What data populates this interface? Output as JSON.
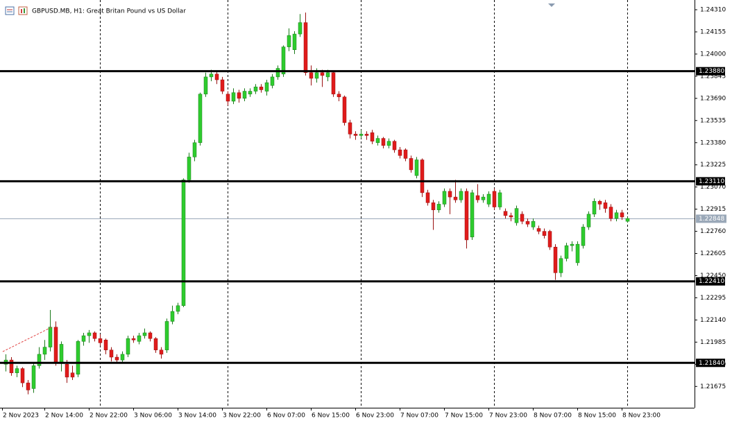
{
  "chart_data": {
    "type": "candlestick",
    "title": "GBPUSD.MB, H1:  Great Britan Pound vs US Dollar",
    "up_color": "#2ecc2e",
    "down_color": "#e01b1b",
    "ylim": [
      1.21526,
      1.24378
    ],
    "yticks": [
      {
        "value": 1.2431,
        "label": "1.24310"
      },
      {
        "value": 1.24155,
        "label": "1.24155"
      },
      {
        "value": 1.24,
        "label": "1.24000"
      },
      {
        "value": 1.23845,
        "label": "1.23845"
      },
      {
        "value": 1.2369,
        "label": "1.23690"
      },
      {
        "value": 1.23535,
        "label": "1.23535"
      },
      {
        "value": 1.2338,
        "label": "1.23380"
      },
      {
        "value": 1.23225,
        "label": "1.23225"
      },
      {
        "value": 1.2307,
        "label": "1.23070"
      },
      {
        "value": 1.22915,
        "label": "1.22915"
      },
      {
        "value": 1.2276,
        "label": "1.22760"
      },
      {
        "value": 1.22605,
        "label": "1.22605"
      },
      {
        "value": 1.2245,
        "label": "1.22450"
      },
      {
        "value": 1.22295,
        "label": "1.22295"
      },
      {
        "value": 1.2214,
        "label": "1.22140"
      },
      {
        "value": 1.21985,
        "label": "1.21985"
      },
      {
        "value": 1.2183,
        "label": "1.21830"
      },
      {
        "value": 1.21675,
        "label": "1.21675"
      }
    ],
    "levels": [
      {
        "value": 1.2388,
        "label": "1.23880"
      },
      {
        "value": 1.2311,
        "label": "1.23110"
      },
      {
        "value": 1.2241,
        "label": "1.22410"
      },
      {
        "value": 1.2184,
        "label": "1.21840"
      }
    ],
    "last_price": {
      "value": 1.22848,
      "label": "1.22848"
    },
    "categories": [
      "2 Nov 2023",
      null,
      null,
      null,
      null,
      null,
      null,
      "2 Nov 14:00",
      null,
      null,
      null,
      null,
      null,
      null,
      null,
      "2 Nov 22:00",
      null,
      null,
      null,
      null,
      null,
      null,
      null,
      "3 Nov 06:00",
      null,
      null,
      null,
      null,
      null,
      null,
      null,
      "3 Nov 14:00",
      null,
      null,
      null,
      null,
      null,
      null,
      null,
      "3 Nov 22:00",
      null,
      null,
      null,
      null,
      null,
      null,
      null,
      "6 Nov 07:00",
      null,
      null,
      null,
      null,
      null,
      null,
      null,
      "6 Nov 15:00",
      null,
      null,
      null,
      null,
      null,
      null,
      null,
      "6 Nov 23:00",
      null,
      null,
      null,
      null,
      null,
      null,
      null,
      "7 Nov 07:00",
      null,
      null,
      null,
      null,
      null,
      null,
      null,
      "7 Nov 15:00",
      null,
      null,
      null,
      null,
      null,
      null,
      null,
      "7 Nov 23:00",
      null,
      null,
      null,
      null,
      null,
      null,
      null,
      "8 Nov 07:00",
      null,
      null,
      null,
      null,
      null,
      null,
      null,
      "8 Nov 15:00",
      null,
      null,
      null,
      null,
      null,
      null,
      null,
      "8 Nov 23:00",
      null
    ],
    "ohlc": [
      [
        1.2183,
        1.219,
        1.2178,
        1.2186
      ],
      [
        1.2186,
        1.2188,
        1.2175,
        1.2177
      ],
      [
        1.2177,
        1.2182,
        1.2174,
        1.218
      ],
      [
        1.218,
        1.2181,
        1.2167,
        1.217
      ],
      [
        1.217,
        1.2172,
        1.2162,
        1.2165
      ],
      [
        1.2166,
        1.2184,
        1.2163,
        1.2182
      ],
      [
        1.2182,
        1.2195,
        1.218,
        1.219
      ],
      [
        1.219,
        1.22,
        1.2186,
        1.2195
      ],
      [
        1.2195,
        1.2221,
        1.2192,
        1.2209
      ],
      [
        1.2209,
        1.2213,
        1.2182,
        1.2184
      ],
      [
        1.2184,
        1.2199,
        1.2178,
        1.2197
      ],
      [
        1.2183,
        1.2186,
        1.217,
        1.2174
      ],
      [
        1.2177,
        1.2182,
        1.2172,
        1.2174
      ],
      [
        1.2176,
        1.22,
        1.2174,
        1.2199
      ],
      [
        1.2199,
        1.2205,
        1.2196,
        1.2203
      ],
      [
        1.2203,
        1.2207,
        1.2198,
        1.2205
      ],
      [
        1.2205,
        1.2206,
        1.2199,
        1.2201
      ],
      [
        1.2201,
        1.2204,
        1.2196,
        1.2198
      ],
      [
        1.22,
        1.2201,
        1.219,
        1.2193
      ],
      [
        1.2193,
        1.2195,
        1.2185,
        1.2188
      ],
      [
        1.2188,
        1.219,
        1.2184,
        1.2186
      ],
      [
        1.2186,
        1.2192,
        1.2184,
        1.219
      ],
      [
        1.219,
        1.2203,
        1.2188,
        1.2201
      ],
      [
        1.2201,
        1.2203,
        1.2198,
        1.22
      ],
      [
        1.2199,
        1.2205,
        1.2197,
        1.2203
      ],
      [
        1.2203,
        1.2208,
        1.2201,
        1.2205
      ],
      [
        1.2205,
        1.2206,
        1.2199,
        1.2201
      ],
      [
        1.2201,
        1.2202,
        1.2191,
        1.2193
      ],
      [
        1.2193,
        1.2195,
        1.2187,
        1.219
      ],
      [
        1.2193,
        1.2215,
        1.2191,
        1.2213
      ],
      [
        1.2213,
        1.2224,
        1.2211,
        1.222
      ],
      [
        1.222,
        1.2226,
        1.2218,
        1.2224
      ],
      [
        1.2224,
        1.2313,
        1.2223,
        1.2312
      ],
      [
        1.2312,
        1.2331,
        1.231,
        1.2328
      ],
      [
        1.2328,
        1.234,
        1.2325,
        1.2338
      ],
      [
        1.2338,
        1.2373,
        1.2336,
        1.2372
      ],
      [
        1.2372,
        1.2387,
        1.237,
        1.2384
      ],
      [
        1.2384,
        1.2389,
        1.2381,
        1.2386
      ],
      [
        1.2386,
        1.2388,
        1.2379,
        1.2382
      ],
      [
        1.2382,
        1.2384,
        1.2372,
        1.2374
      ],
      [
        1.2372,
        1.2374,
        1.2364,
        1.2367
      ],
      [
        1.2367,
        1.2376,
        1.2365,
        1.2373
      ],
      [
        1.2373,
        1.2375,
        1.2366,
        1.2369
      ],
      [
        1.2369,
        1.2376,
        1.2367,
        1.2374
      ],
      [
        1.2372,
        1.2376,
        1.237,
        1.2374
      ],
      [
        1.2374,
        1.2379,
        1.2372,
        1.2377
      ],
      [
        1.2377,
        1.2379,
        1.2373,
        1.2375
      ],
      [
        1.2374,
        1.2382,
        1.2371,
        1.238
      ],
      [
        1.2378,
        1.2386,
        1.2376,
        1.2384
      ],
      [
        1.2384,
        1.2392,
        1.2382,
        1.239
      ],
      [
        1.2386,
        1.2406,
        1.2384,
        1.2405
      ],
      [
        1.2405,
        1.2418,
        1.2402,
        1.2413
      ],
      [
        1.2403,
        1.2416,
        1.24,
        1.2414
      ],
      [
        1.2414,
        1.2428,
        1.2412,
        1.2422
      ],
      [
        1.2422,
        1.2429,
        1.2385,
        1.2387
      ],
      [
        1.2387,
        1.2392,
        1.2378,
        1.2383
      ],
      [
        1.2383,
        1.239,
        1.238,
        1.2387
      ],
      [
        1.2387,
        1.2389,
        1.2377,
        1.2385
      ],
      [
        1.2384,
        1.2389,
        1.2381,
        1.2387
      ],
      [
        1.2387,
        1.2388,
        1.237,
        1.2372
      ],
      [
        1.2372,
        1.2374,
        1.2367,
        1.237
      ],
      [
        1.237,
        1.2371,
        1.235,
        1.2352
      ],
      [
        1.2352,
        1.2354,
        1.2341,
        1.2344
      ],
      [
        1.2344,
        1.2346,
        1.234,
        1.2343
      ],
      [
        1.2343,
        1.2347,
        1.2341,
        1.2344
      ],
      [
        1.2344,
        1.2346,
        1.234,
        1.2343
      ],
      [
        1.2345,
        1.2347,
        1.2337,
        1.2339
      ],
      [
        1.2338,
        1.2343,
        1.2336,
        1.2341
      ],
      [
        1.2341,
        1.2342,
        1.2334,
        1.2336
      ],
      [
        1.2336,
        1.2341,
        1.2334,
        1.2339
      ],
      [
        1.2339,
        1.234,
        1.2331,
        1.2333
      ],
      [
        1.2333,
        1.2335,
        1.2327,
        1.2329
      ],
      [
        1.2333,
        1.2334,
        1.2325,
        1.2327
      ],
      [
        1.2327,
        1.2329,
        1.2317,
        1.2319
      ],
      [
        1.2315,
        1.2328,
        1.2313,
        1.2326
      ],
      [
        1.2326,
        1.2327,
        1.23,
        1.2303
      ],
      [
        1.2303,
        1.2305,
        1.2294,
        1.2296
      ],
      [
        1.2296,
        1.2298,
        1.2277,
        1.2291
      ],
      [
        1.2291,
        1.2297,
        1.2289,
        1.2295
      ],
      [
        1.2295,
        1.2306,
        1.2293,
        1.2304
      ],
      [
        1.2304,
        1.2306,
        1.2288,
        1.23
      ],
      [
        1.23,
        1.2312,
        1.2296,
        1.2298
      ],
      [
        1.2298,
        1.2306,
        1.2296,
        1.2304
      ],
      [
        1.2304,
        1.2306,
        1.2264,
        1.227
      ],
      [
        1.2272,
        1.2305,
        1.227,
        1.2303
      ],
      [
        1.2301,
        1.2309,
        1.2296,
        1.2298
      ],
      [
        1.2298,
        1.2302,
        1.2296,
        1.23
      ],
      [
        1.2295,
        1.2304,
        1.2293,
        1.2302
      ],
      [
        1.2304,
        1.2306,
        1.2291,
        1.2293
      ],
      [
        1.2293,
        1.2305,
        1.2291,
        1.2303
      ],
      [
        1.229,
        1.2292,
        1.2285,
        1.2287
      ],
      [
        1.2287,
        1.2289,
        1.2283,
        1.2286
      ],
      [
        1.2282,
        1.2294,
        1.228,
        1.2292
      ],
      [
        1.2288,
        1.229,
        1.2281,
        1.2283
      ],
      [
        1.2283,
        1.2285,
        1.2279,
        1.2281
      ],
      [
        1.2279,
        1.2285,
        1.2277,
        1.2283
      ],
      [
        1.2278,
        1.228,
        1.2274,
        1.2276
      ],
      [
        1.2276,
        1.2278,
        1.2271,
        1.2273
      ],
      [
        1.2276,
        1.2277,
        1.2263,
        1.2265
      ],
      [
        1.2265,
        1.2267,
        1.2242,
        1.2247
      ],
      [
        1.2247,
        1.2259,
        1.2244,
        1.2257
      ],
      [
        1.2257,
        1.2268,
        1.2255,
        1.2266
      ],
      [
        1.2266,
        1.2269,
        1.2262,
        1.2267
      ],
      [
        1.2254,
        1.2269,
        1.2252,
        1.2267
      ],
      [
        1.2266,
        1.2281,
        1.2264,
        1.2279
      ],
      [
        1.2279,
        1.229,
        1.2277,
        1.2288
      ],
      [
        1.2288,
        1.2299,
        1.2286,
        1.2297
      ],
      [
        1.2297,
        1.2298,
        1.2291,
        1.2295
      ],
      [
        1.2296,
        1.2298,
        1.2289,
        1.2292
      ],
      [
        1.2293,
        1.2295,
        1.2283,
        1.2285
      ],
      [
        1.2285,
        1.2291,
        1.2283,
        1.2289
      ],
      [
        1.2289,
        1.2291,
        1.2284,
        1.2286
      ],
      [
        1.2283,
        1.2286,
        1.2282,
        1.2285
      ]
    ]
  }
}
